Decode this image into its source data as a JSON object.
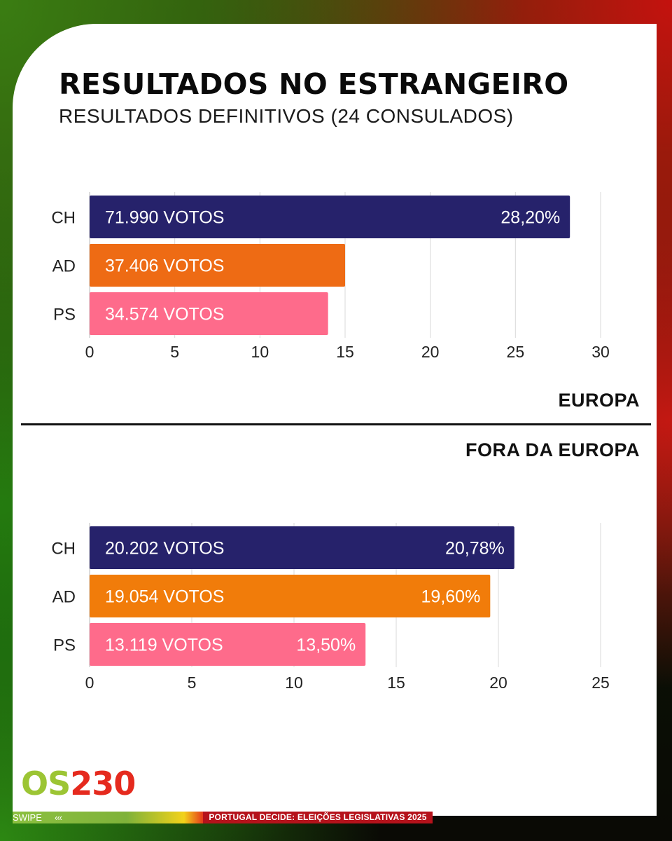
{
  "header": {
    "title": "RESULTADOS NO ESTRANGEIRO",
    "subtitle": "RESULTADOS DEFINITIVOS (24 CONSULADOS)"
  },
  "sections": {
    "europa": "EUROPA",
    "fora": "FORA DA EUROPA"
  },
  "colors": {
    "CH": "#26226b",
    "AD_europa": "#ee6b14",
    "AD_fora": "#f17c0a",
    "PS": "#fe6b8b"
  },
  "chart_data": [
    {
      "type": "bar",
      "orientation": "horizontal",
      "region": "EUROPA",
      "categories": [
        "CH",
        "AD",
        "PS"
      ],
      "values": [
        28.2,
        15.0,
        14.0
      ],
      "vote_labels": [
        "71.990 VOTOS",
        "37.406 VOTOS",
        "34.574 VOTOS"
      ],
      "percent_labels": [
        "28,20%",
        "",
        ""
      ],
      "xlim": [
        0,
        30
      ],
      "xticks": [
        0,
        5,
        10,
        15,
        20,
        25,
        30
      ],
      "grid": true
    },
    {
      "type": "bar",
      "orientation": "horizontal",
      "region": "FORA DA EUROPA",
      "categories": [
        "CH",
        "AD",
        "PS"
      ],
      "values": [
        20.78,
        19.6,
        13.5
      ],
      "vote_labels": [
        "20.202 VOTOS",
        "19.054 VOTOS",
        "13.119 VOTOS"
      ],
      "percent_labels": [
        "20,78%",
        "19,60%",
        "13,50%"
      ],
      "xlim": [
        0,
        25
      ],
      "xticks": [
        0,
        5,
        10,
        15,
        20,
        25
      ],
      "grid": true
    }
  ],
  "footer": {
    "logo_part1": "OS",
    "logo_part2": "230",
    "swipe": "SWIPE",
    "swipe_arrows": "‹‹‹",
    "banner": "PORTUGAL DECIDE: ELEIÇÕES LEGISLATIVAS 2025"
  }
}
